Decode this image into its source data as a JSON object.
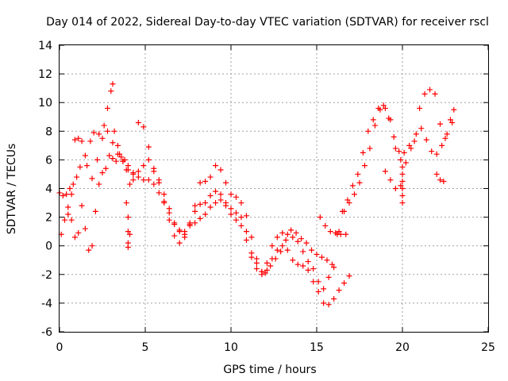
{
  "chart_data": {
    "type": "scatter",
    "title": "Day 014 of 2022, Sidereal Day-to-day VTEC variation (SDTVAR) for receiver rscl",
    "xlabel": "GPS time / hours",
    "ylabel": "SDTVAR / TECUs",
    "xlim": [
      0,
      25
    ],
    "ylim": [
      -6,
      14
    ],
    "xticks": [
      "0",
      "5",
      "10",
      "15",
      "20",
      "25"
    ],
    "yticks": [
      "-6",
      "-4",
      "-2",
      "0",
      "2",
      "4",
      "6",
      "8",
      "10",
      "12",
      "14"
    ],
    "grid": true,
    "marker": "+",
    "series": [
      {
        "name": "trace-1",
        "color": "#ff0000",
        "x": [
          0.0,
          0.2,
          0.4,
          0.6,
          0.8,
          1.0,
          1.2,
          1.5,
          1.8,
          2.0,
          2.3,
          2.6,
          2.8,
          3.0,
          3.1,
          3.2,
          3.4,
          3.6,
          3.8,
          4.0,
          4.3,
          4.6,
          4.9,
          5.2,
          5.5,
          5.8,
          6.1,
          6.4,
          6.7,
          7.0,
          7.3,
          7.6,
          7.9,
          8.2,
          8.5,
          8.8,
          9.1,
          9.4,
          9.7,
          10.0,
          10.3,
          10.6,
          10.9,
          11.2,
          11.5,
          11.8,
          12.0,
          12.3,
          12.6,
          12.9,
          13.2,
          13.5,
          13.8,
          14.1,
          14.4,
          14.7,
          15.0,
          15.3,
          15.6,
          15.9,
          16.2,
          16.5,
          16.8,
          17.1,
          17.4,
          17.7,
          18.0,
          18.3,
          18.6,
          18.9,
          19.2,
          19.5,
          19.8,
          20.1,
          20.4,
          20.7,
          21.0,
          21.3,
          21.6,
          21.9,
          22.2,
          22.5,
          22.8,
          23.0
        ],
        "y": [
          3.7,
          3.5,
          3.6,
          4.0,
          4.3,
          4.8,
          5.5,
          6.3,
          7.3,
          7.9,
          7.8,
          8.4,
          9.6,
          10.8,
          11.3,
          8.0,
          7.0,
          6.2,
          6.0,
          5.6,
          5.1,
          4.8,
          4.6,
          4.6,
          4.3,
          3.7,
          3.0,
          2.3,
          1.5,
          1.0,
          0.8,
          1.5,
          2.8,
          4.4,
          4.5,
          4.8,
          5.6,
          5.3,
          4.4,
          3.6,
          3.4,
          3.0,
          2.1,
          0.6,
          -0.9,
          -1.8,
          -1.9,
          -1.4,
          -0.9,
          -0.4,
          0.4,
          1.1,
          0.9,
          0.5,
          0.2,
          -0.3,
          -0.6,
          -0.8,
          -1.0,
          -1.3,
          0.8,
          2.4,
          3.2,
          4.2,
          5.0,
          6.5,
          8.0,
          8.8,
          9.6,
          9.8,
          8.9,
          7.6,
          6.6,
          6.5,
          7.0,
          7.3,
          9.6,
          10.6,
          10.9,
          10.6,
          8.5,
          7.5,
          8.8,
          9.5
        ]
      },
      {
        "name": "trace-2",
        "color": "#ff0000",
        "x": [
          0.1,
          0.3,
          0.5,
          0.7,
          0.9,
          1.1,
          1.3,
          1.6,
          1.9,
          2.2,
          2.5,
          2.8,
          3.1,
          3.4,
          3.7,
          4.0,
          4.3,
          4.6,
          4.9,
          5.2,
          5.5,
          5.8,
          6.1,
          6.4,
          6.7,
          7.0,
          7.3,
          7.6,
          7.9,
          8.2,
          8.5,
          8.8,
          9.1,
          9.4,
          9.7,
          10.0,
          10.3,
          10.6,
          10.9,
          11.2,
          11.5,
          11.8,
          12.1,
          12.4,
          12.7,
          13.0,
          13.3,
          13.6,
          13.9,
          14.2,
          14.5,
          14.8,
          15.1,
          15.4,
          15.7,
          16.0,
          16.3,
          16.6,
          16.9,
          17.2,
          17.5,
          17.8,
          18.1,
          18.4,
          18.7,
          19.0,
          19.3,
          19.6,
          19.9,
          20.2,
          20.5,
          20.8,
          21.1,
          21.4,
          21.7,
          22.0,
          22.3,
          22.6,
          22.9
        ],
        "y": [
          0.8,
          1.8,
          2.7,
          3.6,
          7.4,
          7.5,
          7.3,
          5.6,
          4.7,
          6.0,
          7.5,
          8.0,
          7.2,
          6.4,
          5.9,
          5.3,
          5.0,
          5.2,
          5.6,
          6.0,
          5.4,
          4.6,
          3.1,
          1.8,
          0.7,
          0.2,
          0.6,
          1.6,
          2.4,
          2.9,
          3.0,
          3.5,
          3.8,
          3.6,
          3.0,
          2.6,
          2.3,
          2.0,
          1.0,
          -0.5,
          -1.2,
          -1.8,
          -1.2,
          0.0,
          0.6,
          0.9,
          0.8,
          0.6,
          0.3,
          -0.4,
          -1.1,
          -1.6,
          -2.5,
          -3.0,
          -2.2,
          -1.5,
          1.0,
          2.4,
          3.0,
          3.6,
          4.4,
          5.6,
          6.8,
          8.4,
          9.5,
          9.6,
          8.8,
          6.8,
          6.0,
          5.8,
          6.8,
          7.8,
          8.2,
          7.4,
          6.6,
          6.4,
          7.0,
          7.8,
          8.6
        ]
      },
      {
        "name": "trace-3",
        "color": "#ff0000",
        "x": [
          0.5,
          0.7,
          0.9,
          1.1,
          1.3,
          1.5,
          1.7,
          1.9,
          2.1,
          2.3,
          2.5,
          2.7,
          2.9,
          3.1,
          3.3,
          3.5,
          3.7,
          3.9,
          4.1,
          4.3,
          4.6,
          4.9,
          5.2,
          5.5,
          5.8,
          6.1,
          6.4,
          6.7,
          7.0,
          7.3,
          7.6,
          7.9,
          8.2,
          8.5,
          8.8,
          9.1,
          9.4,
          9.7,
          10.0,
          10.3,
          10.6,
          10.9,
          11.2,
          11.5,
          11.8,
          12.1,
          12.4,
          12.7,
          13.0,
          13.3,
          13.6,
          13.9,
          14.2,
          14.5,
          14.8,
          15.1,
          15.4,
          15.7,
          16.0,
          16.3,
          16.6,
          16.9
        ],
        "y": [
          2.2,
          1.8,
          0.6,
          0.9,
          2.8,
          1.2,
          -0.3,
          0.0,
          2.4,
          4.3,
          5.1,
          5.4,
          6.3,
          6.1,
          5.9,
          6.4,
          5.9,
          5.3,
          4.3,
          4.6,
          8.6,
          8.3,
          6.9,
          5.2,
          4.4,
          3.6,
          2.6,
          1.6,
          1.1,
          1.0,
          1.4,
          1.6,
          1.9,
          2.2,
          2.7,
          3.0,
          3.2,
          2.8,
          2.2,
          1.8,
          1.4,
          0.4,
          -0.8,
          -1.6,
          -2.0,
          -1.7,
          -0.9,
          -0.3,
          0.0,
          -0.3,
          -1.0,
          -1.3,
          -1.4,
          -1.7,
          -2.5,
          -3.2,
          -4.0,
          -4.1,
          -3.7,
          -3.1,
          -2.6,
          -2.1
        ]
      },
      {
        "name": "trace-4",
        "color": "#ff0000",
        "x": [
          3.9,
          4.0,
          4.0,
          4.0,
          4.0,
          4.1,
          15.2,
          15.5,
          15.8,
          16.1,
          16.4,
          16.7,
          20.0,
          20.0,
          20.0,
          20.0,
          20.0,
          20.0,
          19.0,
          19.3,
          19.6,
          19.9,
          22.0,
          22.2,
          22.4
        ],
        "y": [
          3.0,
          2.0,
          1.0,
          0.2,
          -0.1,
          0.8,
          2.0,
          1.4,
          1.0,
          0.9,
          0.8,
          0.8,
          3.0,
          3.5,
          4.0,
          4.5,
          5.0,
          5.5,
          5.2,
          4.6,
          4.0,
          4.2,
          5.0,
          4.6,
          4.5
        ]
      }
    ]
  }
}
